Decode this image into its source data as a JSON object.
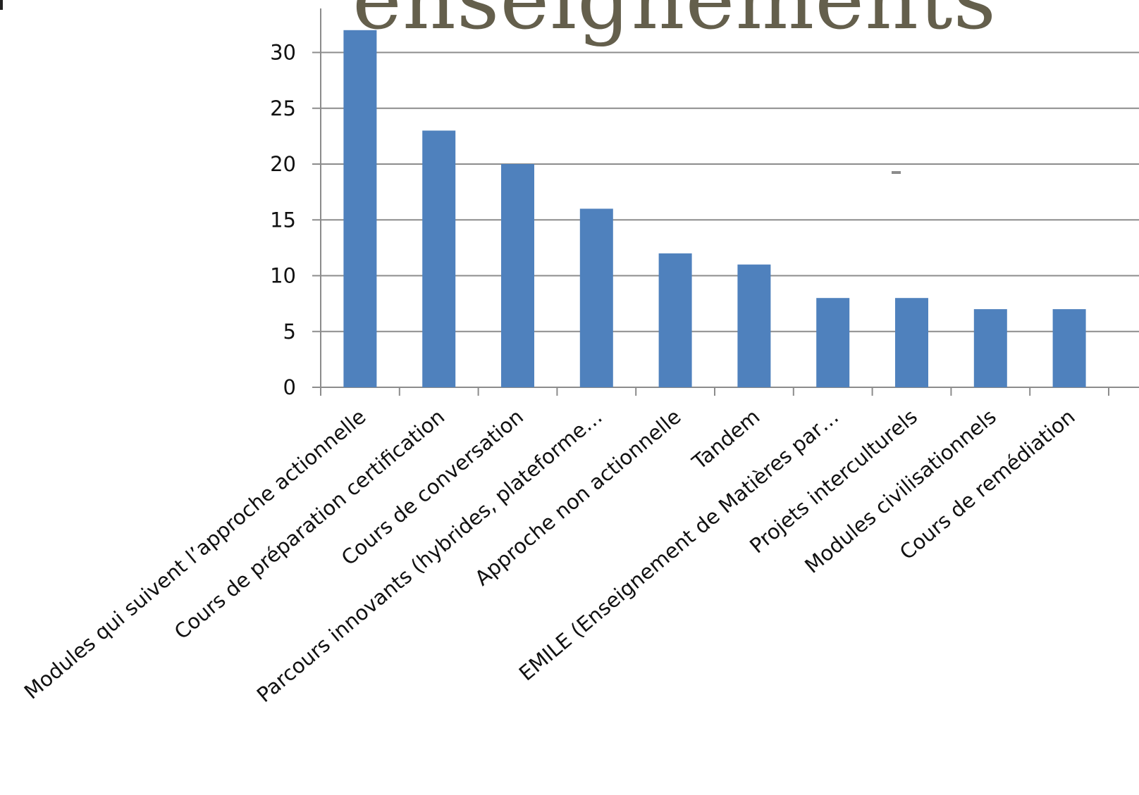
{
  "page_title": "enseignements",
  "chart_data": {
    "type": "bar",
    "title": "",
    "xlabel": "",
    "ylabel": "",
    "categories": [
      "Modules qui suivent l’approche actionnelle",
      "Cours de préparation certification",
      "Cours de conversation",
      "Parcours innovants (hybrides, plateforme…",
      "Approche non actionnelle",
      "Tandem",
      "EMILE (Enseignement de Matières par…",
      "Projets interculturels",
      "Modules civilisationnels",
      "Cours de remédiation"
    ],
    "values": [
      32,
      23,
      20,
      16,
      12,
      11,
      8,
      8,
      7,
      7
    ],
    "ylim": [
      0,
      32
    ],
    "yticks": [
      0,
      5,
      10,
      15,
      20,
      25,
      30
    ],
    "grid": true,
    "legend": "none"
  },
  "colors": {
    "bar": "#4f81bd",
    "title": "#645f4c",
    "grid": "#8c8c8c",
    "axis": "#8c8c8c",
    "text": "#111111"
  }
}
